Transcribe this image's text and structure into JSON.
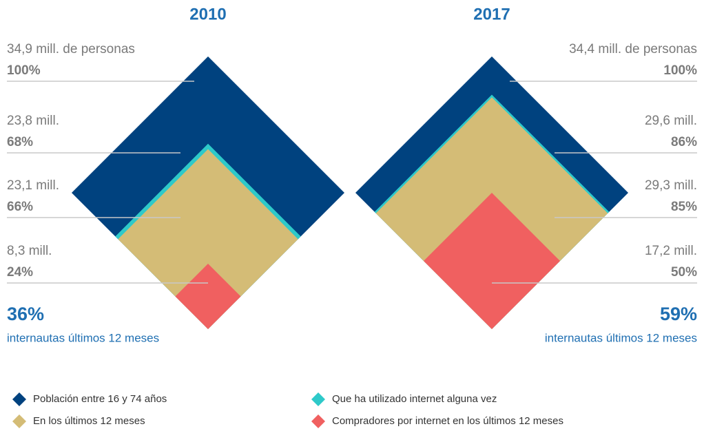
{
  "legend": [
    {
      "name": "Población entre 16 y 74 años",
      "color": "#00427f"
    },
    {
      "name": "Que ha utilizado internet alguna vez",
      "color": "#2ec9c9"
    },
    {
      "name": "En los últimos 12 meses",
      "color": "#d4bc76"
    },
    {
      "name": "Compradores por internet en los últimos 12 meses",
      "color": "#f06060"
    }
  ],
  "chart_data": [
    {
      "type": "diamond",
      "title": "2010",
      "values": [
        100,
        68,
        66,
        24
      ],
      "value_labels": [
        "100%",
        "68%",
        "66%",
        "24%"
      ],
      "count_labels": [
        "34,9 mill. de personas",
        "23,8 mill.",
        "23,1 mill.",
        "8,3 mill."
      ],
      "highlight": "36%",
      "highlight_text": "internautas últimos 12 meses"
    },
    {
      "type": "diamond",
      "title": "2017",
      "values": [
        100,
        86,
        85,
        50
      ],
      "value_labels": [
        "100%",
        "86%",
        "85%",
        "50%"
      ],
      "count_labels": [
        "34,4 mill. de personas",
        "29,6 mill.",
        "29,3 mill.",
        "17,2 mill."
      ],
      "highlight": "59%",
      "highlight_text": "internautas últimos 12 meses"
    }
  ]
}
